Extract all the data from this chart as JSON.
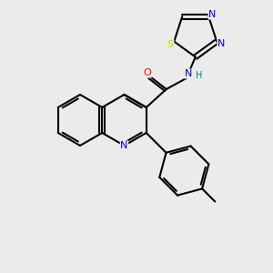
{
  "background_color": "#ebebeb",
  "bond_color": "#000000",
  "atom_colors": {
    "N": "#0000cc",
    "O": "#ff0000",
    "S": "#cccc00",
    "C": "#000000",
    "H": "#008080"
  },
  "figsize": [
    3.0,
    3.0
  ],
  "dpi": 100
}
